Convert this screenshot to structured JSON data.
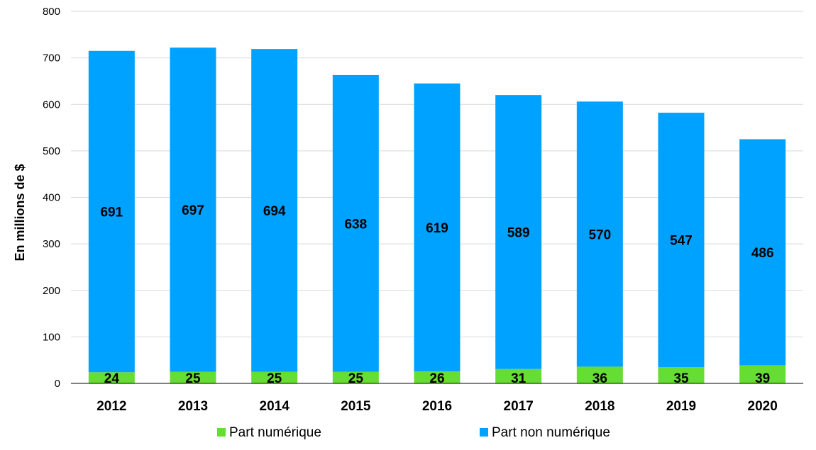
{
  "chart_data": {
    "type": "bar",
    "stacked": true,
    "categories": [
      "2012",
      "2013",
      "2014",
      "2015",
      "2016",
      "2017",
      "2018",
      "2019",
      "2020"
    ],
    "series": [
      {
        "name": "Part numérique",
        "color": "#66dd33",
        "values": [
          24,
          25,
          25,
          25,
          26,
          31,
          36,
          35,
          39
        ]
      },
      {
        "name": "Part non numérique",
        "color": "#00a2ff",
        "values": [
          691,
          697,
          694,
          638,
          619,
          589,
          570,
          547,
          486
        ]
      }
    ],
    "title": "",
    "xlabel": "",
    "ylabel": "En millions de $",
    "ylim": [
      0,
      800
    ],
    "yticks": [
      0,
      100,
      200,
      300,
      400,
      500,
      600,
      700,
      800
    ],
    "grid": true,
    "legend_position": "bottom"
  }
}
